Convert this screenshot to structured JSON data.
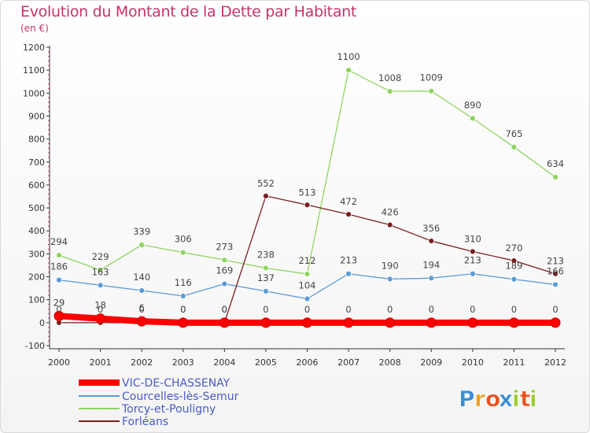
{
  "header": {
    "title": "Evolution du Montant de la Dette par Habitant",
    "subtitle": "(en €)"
  },
  "logo": {
    "text": "Proxiti",
    "letters": [
      "P",
      "r",
      "o",
      "x",
      "i",
      "t",
      "i"
    ],
    "colors": [
      "#3a8fd4",
      "#f0a020",
      "#e85020",
      "#3a8fd4",
      "#9ccc30",
      "#e85020",
      "#9ccc30"
    ]
  },
  "chart_data": {
    "type": "line",
    "title": "Evolution du Montant de la Dette par Habitant",
    "ylabel": "(en €)",
    "xlabel": "",
    "x": [
      "2000",
      "2001",
      "2002",
      "2003",
      "2004",
      "2005",
      "2006",
      "2007",
      "2008",
      "2009",
      "2010",
      "2011",
      "2012"
    ],
    "ylim": [
      -100,
      1200
    ],
    "yticks": [
      -100,
      0,
      100,
      200,
      300,
      400,
      500,
      600,
      700,
      800,
      900,
      1000,
      1100,
      1200
    ],
    "grid": false,
    "legend": "bottom-left",
    "series": [
      {
        "name": "VIC-DE-CHASSENAY",
        "color": "#ff0000",
        "values": [
          29,
          18,
          6,
          0,
          0,
          0,
          0,
          0,
          0,
          0,
          0,
          0,
          0
        ]
      },
      {
        "name": "Courcelles-lès-Semur",
        "color": "#5b9bd5",
        "values": [
          186,
          163,
          140,
          116,
          169,
          137,
          104,
          213,
          190,
          194,
          213,
          189,
          166
        ]
      },
      {
        "name": "Torcy-et-Pouligny",
        "color": "#8fd460",
        "values": [
          294,
          229,
          339,
          306,
          273,
          238,
          212,
          1100,
          1008,
          1009,
          890,
          765,
          634
        ]
      },
      {
        "name": "Forléans",
        "color": "#7a1f1f",
        "values": [
          0,
          0,
          0,
          0,
          0,
          552,
          513,
          472,
          426,
          356,
          310,
          270,
          213
        ]
      }
    ]
  }
}
